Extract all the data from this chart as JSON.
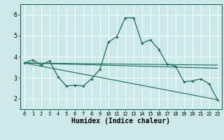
{
  "xlabel": "Humidex (Indice chaleur)",
  "background_color": "#cde8e8",
  "line_color": "#1a6b5a",
  "grid_color": "#ffffff",
  "xlim": [
    -0.5,
    23.5
  ],
  "ylim": [
    1.5,
    6.5
  ],
  "yticks": [
    2,
    3,
    4,
    5,
    6
  ],
  "xticks": [
    0,
    1,
    2,
    3,
    4,
    5,
    6,
    7,
    8,
    9,
    10,
    11,
    12,
    13,
    14,
    15,
    16,
    17,
    18,
    19,
    20,
    21,
    22,
    23
  ],
  "series1_x": [
    0,
    1,
    2,
    3,
    4,
    5,
    6,
    7,
    8,
    9,
    10,
    11,
    12,
    13,
    14,
    15,
    16,
    17,
    18,
    19,
    20,
    21,
    22,
    23
  ],
  "series1_y": [
    3.7,
    3.85,
    3.6,
    3.8,
    3.05,
    2.6,
    2.65,
    2.6,
    2.95,
    3.4,
    4.7,
    4.95,
    5.85,
    5.85,
    4.65,
    4.8,
    4.35,
    3.65,
    3.55,
    2.8,
    2.85,
    2.95,
    2.7,
    1.95
  ],
  "line2_x": [
    0,
    23
  ],
  "line2_y": [
    3.7,
    3.6
  ],
  "line3_x": [
    0,
    23
  ],
  "line3_y": [
    3.7,
    1.95
  ],
  "line4_x": [
    0,
    23
  ],
  "line4_y": [
    3.7,
    3.45
  ]
}
